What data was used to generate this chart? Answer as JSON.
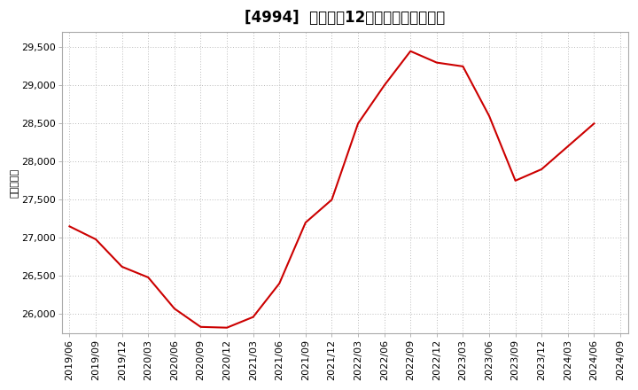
{
  "title": "[4994]  売上高の12か月移動合計の推移",
  "ylabel": "（百万円）",
  "line_color": "#cc0000",
  "background_color": "#ffffff",
  "plot_bg_color": "#ffffff",
  "grid_color": "#bbbbbb",
  "dates": [
    "2019/06",
    "2019/09",
    "2019/12",
    "2020/03",
    "2020/06",
    "2020/09",
    "2020/12",
    "2021/03",
    "2021/06",
    "2021/09",
    "2021/12",
    "2022/03",
    "2022/06",
    "2022/09",
    "2022/12",
    "2023/03",
    "2023/06",
    "2023/09",
    "2023/12",
    "2024/03",
    "2024/06",
    "2024/09"
  ],
  "values": [
    27150,
    26980,
    26620,
    26480,
    26070,
    25830,
    25820,
    25960,
    26400,
    27200,
    27500,
    28500,
    29000,
    29450,
    29300,
    29250,
    28600,
    27750,
    27900,
    28200,
    28500,
    null
  ],
  "ylim": [
    25750,
    29700
  ],
  "yticks": [
    26000,
    26500,
    27000,
    27500,
    28000,
    28500,
    29000,
    29500
  ],
  "figsize": [
    7.2,
    4.4
  ],
  "dpi": 100,
  "title_fontsize": 12,
  "tick_fontsize": 8,
  "ylabel_fontsize": 8
}
